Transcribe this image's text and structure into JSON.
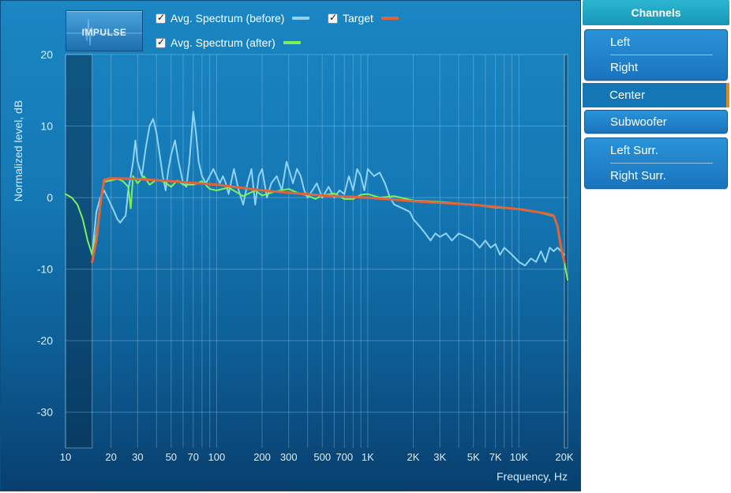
{
  "impulse_label": "IMPULSE",
  "legend": [
    {
      "label": "Avg. Spectrum (before)",
      "color": "#8fd3f5",
      "checked": true
    },
    {
      "label": "Target",
      "color": "#e0653a",
      "checked": true
    },
    {
      "label": "Avg. Spectrum (after)",
      "color": "#7ef05a",
      "checked": true
    }
  ],
  "channels": {
    "header": "Channels",
    "items": [
      "Left",
      "Right",
      "Center",
      "Subwoofer",
      "Left Surr.",
      "Right Surr."
    ],
    "selected": "Center"
  },
  "chart_data": {
    "type": "line",
    "xlabel": "Frequency, Hz",
    "ylabel": "Normalized level, dB",
    "xscale": "log",
    "xlim": [
      10,
      21000
    ],
    "ylim": [
      -35,
      20
    ],
    "yticks": [
      "20",
      "10",
      "0",
      "-10",
      "-20",
      "-30"
    ],
    "xticks": [
      {
        "f": 10,
        "label": "10"
      },
      {
        "f": 20,
        "label": "20"
      },
      {
        "f": 30,
        "label": "30"
      },
      {
        "f": 50,
        "label": "50"
      },
      {
        "f": 70,
        "label": "70"
      },
      {
        "f": 100,
        "label": "100"
      },
      {
        "f": 200,
        "label": "200"
      },
      {
        "f": 300,
        "label": "300"
      },
      {
        "f": 500,
        "label": "500"
      },
      {
        "f": 700,
        "label": "700"
      },
      {
        "f": 1000,
        "label": "1K"
      },
      {
        "f": 2000,
        "label": "2K"
      },
      {
        "f": 3000,
        "label": "3K"
      },
      {
        "f": 5000,
        "label": "5K"
      },
      {
        "f": 7000,
        "label": "7K"
      },
      {
        "f": 10000,
        "label": "10K"
      },
      {
        "f": 20000,
        "label": "20K"
      }
    ],
    "excluded_ranges": [
      [
        10,
        15
      ],
      [
        20000,
        21000
      ]
    ],
    "series": [
      {
        "name": "Avg. Spectrum (before)",
        "color": "#8fd3f5",
        "x": [
          15,
          16,
          17,
          18,
          20,
          21,
          22,
          23,
          24,
          25,
          26,
          27,
          28,
          29,
          30,
          32,
          34,
          36,
          38,
          40,
          42,
          44,
          46,
          48,
          50,
          53,
          56,
          60,
          63,
          66,
          70,
          73,
          76,
          80,
          85,
          90,
          95,
          100,
          105,
          110,
          115,
          120,
          130,
          140,
          150,
          160,
          170,
          180,
          190,
          200,
          215,
          230,
          250,
          270,
          290,
          300,
          320,
          340,
          360,
          380,
          400,
          430,
          460,
          500,
          550,
          600,
          650,
          700,
          750,
          800,
          850,
          900,
          950,
          1000,
          1100,
          1200,
          1300,
          1400,
          1500,
          1700,
          1900,
          2000,
          2200,
          2400,
          2600,
          2800,
          3000,
          3300,
          3600,
          4000,
          4500,
          5000,
          5500,
          6000,
          6500,
          7000,
          7500,
          8000,
          8500,
          9000,
          9500,
          10000,
          11000,
          12000,
          13000,
          14000,
          15000,
          16000,
          17000,
          18000,
          19000,
          20000
        ],
        "y": [
          -8,
          -2,
          0,
          1,
          -1,
          -2,
          -3,
          -3.5,
          -3,
          -2.5,
          1,
          3,
          5,
          8,
          5,
          3,
          7,
          10,
          11,
          9,
          6,
          3,
          1,
          4,
          6,
          8,
          5,
          2,
          1.5,
          5,
          12,
          9,
          5,
          3,
          2,
          3,
          4,
          3,
          2,
          3,
          2,
          0.5,
          4,
          1,
          -1,
          2,
          4,
          -1,
          3,
          4,
          0,
          2,
          3,
          1,
          5,
          4,
          2,
          4,
          3,
          1,
          0,
          1,
          2,
          0,
          1.5,
          0,
          1,
          0.5,
          3,
          1,
          4,
          3,
          1,
          4,
          3,
          3.5,
          2,
          0,
          -1,
          -1.5,
          -2,
          -3,
          -4,
          -5,
          -6,
          -5,
          -5.5,
          -5,
          -6,
          -5,
          -5.5,
          -6,
          -7,
          -6,
          -7,
          -6.5,
          -8,
          -7,
          -7.5,
          -8,
          -8.5,
          -9,
          -9.5,
          -8.5,
          -9,
          -7.5,
          -9,
          -7,
          -7.5,
          -7,
          -7.5,
          -8
        ]
      },
      {
        "name": "Target",
        "color": "#e0653a",
        "x": [
          15,
          16,
          17,
          18,
          20,
          30,
          50,
          100,
          200,
          500,
          1000,
          2000,
          5000,
          10000,
          15000,
          17000,
          18000,
          19000,
          20000
        ],
        "y": [
          -9,
          -6,
          -1,
          2.5,
          2.7,
          2.6,
          2.3,
          1.8,
          1.0,
          0.3,
          0,
          -0.5,
          -1.0,
          -1.6,
          -2.2,
          -2.5,
          -4,
          -7,
          -9
        ]
      },
      {
        "name": "Avg. Spectrum (after)",
        "color": "#7ef05a",
        "x": [
          10,
          11,
          12,
          13,
          14,
          15,
          16,
          17,
          18,
          20,
          22,
          24,
          26,
          27,
          28,
          30,
          33,
          36,
          40,
          45,
          50,
          55,
          60,
          70,
          80,
          90,
          100,
          120,
          150,
          180,
          200,
          250,
          300,
          350,
          400,
          450,
          500,
          600,
          700,
          800,
          900,
          1000,
          1200,
          1500,
          2000,
          3000,
          5000,
          7000,
          10000,
          13000,
          15000,
          17000,
          18000,
          19000,
          20000,
          21000
        ],
        "y": [
          0.5,
          0,
          -1,
          -3,
          -6,
          -8,
          -5,
          -1,
          2.2,
          2.4,
          2.6,
          2.3,
          1.5,
          -1.5,
          3,
          2.0,
          3.0,
          1.8,
          2.5,
          2.2,
          1.5,
          2.4,
          1.8,
          1.8,
          2.3,
          1.2,
          1.0,
          1.4,
          0.2,
          1.0,
          0.3,
          0.9,
          1.2,
          0.6,
          0.3,
          -0.2,
          0.3,
          0.6,
          -0.2,
          -0.2,
          0.4,
          0.5,
          0.0,
          0.2,
          -0.4,
          -0.6,
          -1.0,
          -1.4,
          -1.6,
          -2.0,
          -2.3,
          -2.6,
          -4,
          -7,
          -9,
          -11.5
        ]
      }
    ]
  }
}
